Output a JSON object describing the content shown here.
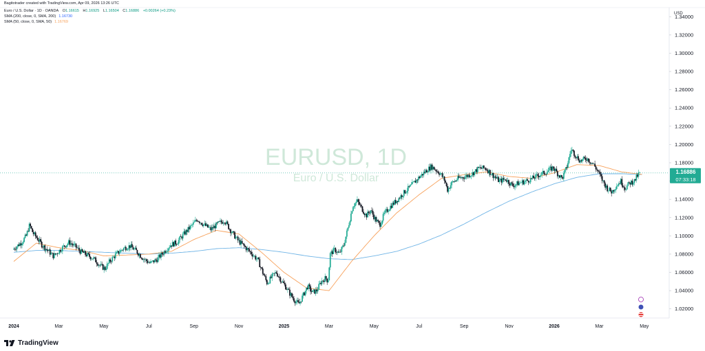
{
  "header": {
    "created_by": "Bagitotrader created with TradingView.com, Apr 09, 2026 13:26 UTC",
    "symbol_line": "Euro / U.S. Dollar · 1D · OANDA",
    "ohlc": {
      "o_label": "O",
      "o": "1.16615",
      "h_label": "H",
      "h": "1.16925",
      "l_label": "L",
      "l": "1.16504",
      "c_label": "C",
      "c": "1.16886",
      "change": "+0.00264 (+0.23%)"
    },
    "sma200_label": "SMA (200, close, 0, SMA, 200)",
    "sma200_value": "1.16730",
    "sma50_label": "SMA (50, close, 0, SMA, 50)",
    "sma50_value": "1.16769"
  },
  "watermark": {
    "title": "EURUSD, 1D",
    "subtitle": "Euro / U.S. Dollar"
  },
  "price_axis": {
    "currency": "USD",
    "last_price": "1.16886",
    "countdown": "07:33:18"
  },
  "logo": {
    "text": "TradingView"
  },
  "colors": {
    "up": "#22ab94",
    "down": "#131722",
    "sma200": "#6fb4e6",
    "sma50": "#f7a15b",
    "label_bg": "#22ab94",
    "watermark": "#cfe8d9"
  },
  "chart_data": {
    "type": "candlestick",
    "title": "EURUSD, 1D",
    "subtitle": "Euro / U.S. Dollar",
    "ylabel": "USD",
    "y_ticks": [
      "1.34000",
      "1.32000",
      "1.30000",
      "1.28000",
      "1.26000",
      "1.24000",
      "1.22000",
      "1.20000",
      "1.18000",
      "1.16000",
      "1.14000",
      "1.12000",
      "1.10000",
      "1.08000",
      "1.06000",
      "1.04000",
      "1.02000"
    ],
    "ylim": [
      1.01,
      1.35
    ],
    "x_ticks": [
      "2024",
      "Mar",
      "May",
      "Jul",
      "Sep",
      "Nov",
      "2025",
      "Mar",
      "May",
      "Jul",
      "Sep",
      "Nov",
      "2026",
      "Mar",
      "May"
    ],
    "x_tick_months": [
      0,
      2,
      4,
      6,
      8,
      10,
      12,
      14,
      16,
      18,
      20,
      22,
      24,
      26,
      28
    ],
    "xlim_months": [
      0,
      28.8
    ],
    "last_close": 1.16886,
    "close_series_months": [
      [
        0.0,
        1.085
      ],
      [
        0.4,
        1.093
      ],
      [
        0.6,
        1.1
      ],
      [
        0.75,
        1.112
      ],
      [
        0.9,
        1.103
      ],
      [
        1.1,
        1.097
      ],
      [
        1.3,
        1.09
      ],
      [
        1.6,
        1.083
      ],
      [
        1.8,
        1.078
      ],
      [
        2.0,
        1.082
      ],
      [
        2.2,
        1.087
      ],
      [
        2.5,
        1.093
      ],
      [
        2.8,
        1.088
      ],
      [
        3.0,
        1.083
      ],
      [
        3.3,
        1.079
      ],
      [
        3.6,
        1.075
      ],
      [
        3.9,
        1.067
      ],
      [
        4.1,
        1.064
      ],
      [
        4.3,
        1.072
      ],
      [
        4.6,
        1.08
      ],
      [
        4.9,
        1.086
      ],
      [
        5.2,
        1.089
      ],
      [
        5.5,
        1.083
      ],
      [
        5.8,
        1.075
      ],
      [
        6.1,
        1.07
      ],
      [
        6.4,
        1.074
      ],
      [
        6.7,
        1.082
      ],
      [
        7.0,
        1.09
      ],
      [
        7.3,
        1.093
      ],
      [
        7.6,
        1.102
      ],
      [
        7.9,
        1.11
      ],
      [
        8.2,
        1.118
      ],
      [
        8.5,
        1.112
      ],
      [
        8.8,
        1.107
      ],
      [
        9.1,
        1.113
      ],
      [
        9.4,
        1.117
      ],
      [
        9.7,
        1.105
      ],
      [
        10.0,
        1.095
      ],
      [
        10.3,
        1.088
      ],
      [
        10.6,
        1.081
      ],
      [
        10.9,
        1.073
      ],
      [
        11.1,
        1.06
      ],
      [
        11.3,
        1.048
      ],
      [
        11.5,
        1.055
      ],
      [
        11.7,
        1.06
      ],
      [
        11.9,
        1.052
      ],
      [
        12.1,
        1.045
      ],
      [
        12.3,
        1.037
      ],
      [
        12.5,
        1.03
      ],
      [
        12.7,
        1.025
      ],
      [
        12.9,
        1.035
      ],
      [
        13.1,
        1.045
      ],
      [
        13.3,
        1.038
      ],
      [
        13.5,
        1.04
      ],
      [
        13.7,
        1.05
      ],
      [
        13.9,
        1.054
      ],
      [
        14.0,
        1.05
      ],
      [
        14.1,
        1.08
      ],
      [
        14.3,
        1.085
      ],
      [
        14.5,
        1.08
      ],
      [
        14.7,
        1.09
      ],
      [
        14.9,
        1.11
      ],
      [
        15.1,
        1.133
      ],
      [
        15.3,
        1.138
      ],
      [
        15.5,
        1.13
      ],
      [
        15.7,
        1.122
      ],
      [
        15.9,
        1.128
      ],
      [
        16.1,
        1.118
      ],
      [
        16.3,
        1.112
      ],
      [
        16.5,
        1.124
      ],
      [
        16.8,
        1.133
      ],
      [
        17.1,
        1.14
      ],
      [
        17.4,
        1.148
      ],
      [
        17.7,
        1.155
      ],
      [
        18.0,
        1.163
      ],
      [
        18.3,
        1.17
      ],
      [
        18.6,
        1.176
      ],
      [
        18.8,
        1.172
      ],
      [
        19.0,
        1.168
      ],
      [
        19.2,
        1.16
      ],
      [
        19.3,
        1.15
      ],
      [
        19.5,
        1.158
      ],
      [
        19.8,
        1.163
      ],
      [
        20.1,
        1.165
      ],
      [
        20.4,
        1.168
      ],
      [
        20.7,
        1.174
      ],
      [
        21.0,
        1.174
      ],
      [
        21.3,
        1.167
      ],
      [
        21.6,
        1.16
      ],
      [
        21.9,
        1.162
      ],
      [
        22.2,
        1.155
      ],
      [
        22.5,
        1.158
      ],
      [
        22.8,
        1.16
      ],
      [
        23.1,
        1.163
      ],
      [
        23.4,
        1.167
      ],
      [
        23.7,
        1.17
      ],
      [
        24.0,
        1.175
      ],
      [
        24.2,
        1.168
      ],
      [
        24.4,
        1.163
      ],
      [
        24.6,
        1.175
      ],
      [
        24.8,
        1.195
      ],
      [
        25.0,
        1.188
      ],
      [
        25.2,
        1.182
      ],
      [
        25.5,
        1.185
      ],
      [
        25.8,
        1.178
      ],
      [
        26.0,
        1.17
      ],
      [
        26.2,
        1.16
      ],
      [
        26.4,
        1.152
      ],
      [
        26.6,
        1.148
      ],
      [
        26.8,
        1.155
      ],
      [
        27.0,
        1.16
      ],
      [
        27.2,
        1.152
      ],
      [
        27.4,
        1.158
      ],
      [
        27.6,
        1.16
      ],
      [
        27.8,
        1.168
      ]
    ],
    "sma200_series_months": [
      [
        0,
        1.082
      ],
      [
        1,
        1.084
      ],
      [
        2,
        1.084
      ],
      [
        3,
        1.083
      ],
      [
        4,
        1.082
      ],
      [
        5,
        1.081
      ],
      [
        6,
        1.08
      ],
      [
        7,
        1.081
      ],
      [
        8,
        1.083
      ],
      [
        9,
        1.086
      ],
      [
        10,
        1.087
      ],
      [
        11,
        1.085
      ],
      [
        12,
        1.082
      ],
      [
        13,
        1.078
      ],
      [
        14,
        1.075
      ],
      [
        15,
        1.074
      ],
      [
        16,
        1.078
      ],
      [
        17,
        1.083
      ],
      [
        18,
        1.091
      ],
      [
        19,
        1.101
      ],
      [
        20,
        1.113
      ],
      [
        21,
        1.126
      ],
      [
        22,
        1.138
      ],
      [
        23,
        1.148
      ],
      [
        24,
        1.157
      ],
      [
        25,
        1.164
      ],
      [
        26,
        1.168
      ],
      [
        27,
        1.168
      ],
      [
        28,
        1.167
      ]
    ],
    "sma50_series_months": [
      [
        0,
        1.072
      ],
      [
        1,
        1.092
      ],
      [
        2,
        1.087
      ],
      [
        3,
        1.084
      ],
      [
        4,
        1.078
      ],
      [
        5,
        1.079
      ],
      [
        6,
        1.08
      ],
      [
        7,
        1.083
      ],
      [
        8,
        1.096
      ],
      [
        9,
        1.106
      ],
      [
        10,
        1.102
      ],
      [
        11,
        1.082
      ],
      [
        12,
        1.06
      ],
      [
        13,
        1.043
      ],
      [
        14,
        1.04
      ],
      [
        15,
        1.072
      ],
      [
        16,
        1.1
      ],
      [
        17,
        1.125
      ],
      [
        18,
        1.145
      ],
      [
        19,
        1.163
      ],
      [
        20,
        1.167
      ],
      [
        21,
        1.17
      ],
      [
        22,
        1.165
      ],
      [
        23,
        1.163
      ],
      [
        24,
        1.169
      ],
      [
        25,
        1.178
      ],
      [
        26,
        1.177
      ],
      [
        27,
        1.17
      ],
      [
        28,
        1.167
      ]
    ]
  }
}
